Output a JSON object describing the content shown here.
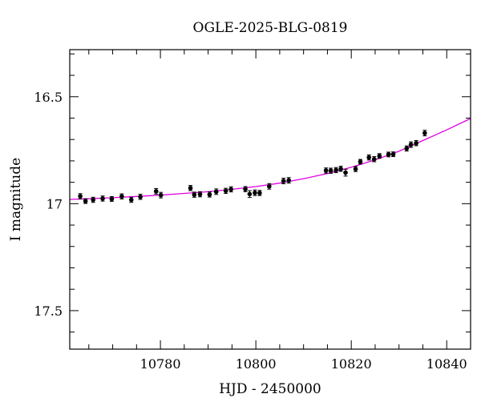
{
  "chart_data": {
    "type": "scatter",
    "title": "OGLE-2025-BLG-0819",
    "xlabel": "HJD - 2450000",
    "ylabel": "I magnitude",
    "xlim": [
      10761,
      10845
    ],
    "ylim": [
      17.68,
      16.28
    ],
    "y_inverted": true,
    "grid": false,
    "x_major_ticks": [
      10780,
      10800,
      10820,
      10840
    ],
    "x_tick_labels": [
      "10780",
      "10800",
      "10820",
      "10840"
    ],
    "x_minor_step": 5,
    "y_major_ticks": [
      16.5,
      17,
      17.5
    ],
    "y_tick_labels": [
      "16.5",
      "17",
      "17.5"
    ],
    "y_minor_step": 0.1,
    "colors": {
      "model": "#e000e0",
      "points": "#000000"
    },
    "series": [
      {
        "kind": "points",
        "x": [
          10763.2,
          10764.3,
          10765.9,
          10767.9,
          10769.8,
          10771.9,
          10773.9,
          10775.8,
          10779.1,
          10780.1,
          10786.3,
          10787.1,
          10788.3,
          10790.3,
          10791.7,
          10793.7,
          10794.8,
          10797.8,
          10798.7,
          10799.8,
          10800.8,
          10802.8,
          10805.8,
          10806.9,
          10814.7,
          10815.7,
          10816.8,
          10817.8,
          10818.8,
          10820.9,
          10821.9,
          10823.7,
          10824.8,
          10825.9,
          10827.8,
          10828.8,
          10831.6,
          10832.5,
          10833.6,
          10835.4
        ],
        "y": [
          16.965,
          16.988,
          16.982,
          16.976,
          16.978,
          16.966,
          16.982,
          16.968,
          16.942,
          16.96,
          16.927,
          16.958,
          16.956,
          16.957,
          16.944,
          16.94,
          16.933,
          16.932,
          16.955,
          16.949,
          16.95,
          16.919,
          16.894,
          16.891,
          16.845,
          16.846,
          16.843,
          16.837,
          16.855,
          16.838,
          16.804,
          16.784,
          16.792,
          16.777,
          16.77,
          16.769,
          16.742,
          16.724,
          16.717,
          16.67
        ],
        "yerr": [
          0.012,
          0.011,
          0.012,
          0.012,
          0.011,
          0.012,
          0.012,
          0.012,
          0.013,
          0.013,
          0.012,
          0.012,
          0.012,
          0.012,
          0.013,
          0.012,
          0.012,
          0.012,
          0.016,
          0.013,
          0.012,
          0.013,
          0.013,
          0.013,
          0.012,
          0.012,
          0.012,
          0.012,
          0.016,
          0.012,
          0.011,
          0.012,
          0.012,
          0.011,
          0.011,
          0.011,
          0.012,
          0.013,
          0.012,
          0.013
        ]
      },
      {
        "kind": "model",
        "x": [
          10761,
          10765,
          10770,
          10775,
          10780,
          10785,
          10790,
          10795,
          10800,
          10805,
          10810,
          10815,
          10820,
          10825,
          10830,
          10835,
          10840,
          10845
        ],
        "y": [
          16.98,
          16.977,
          16.972,
          16.966,
          16.96,
          16.952,
          16.944,
          16.933,
          16.92,
          16.904,
          16.883,
          16.859,
          16.83,
          16.795,
          16.755,
          16.705,
          16.655,
          16.602
        ]
      }
    ]
  }
}
